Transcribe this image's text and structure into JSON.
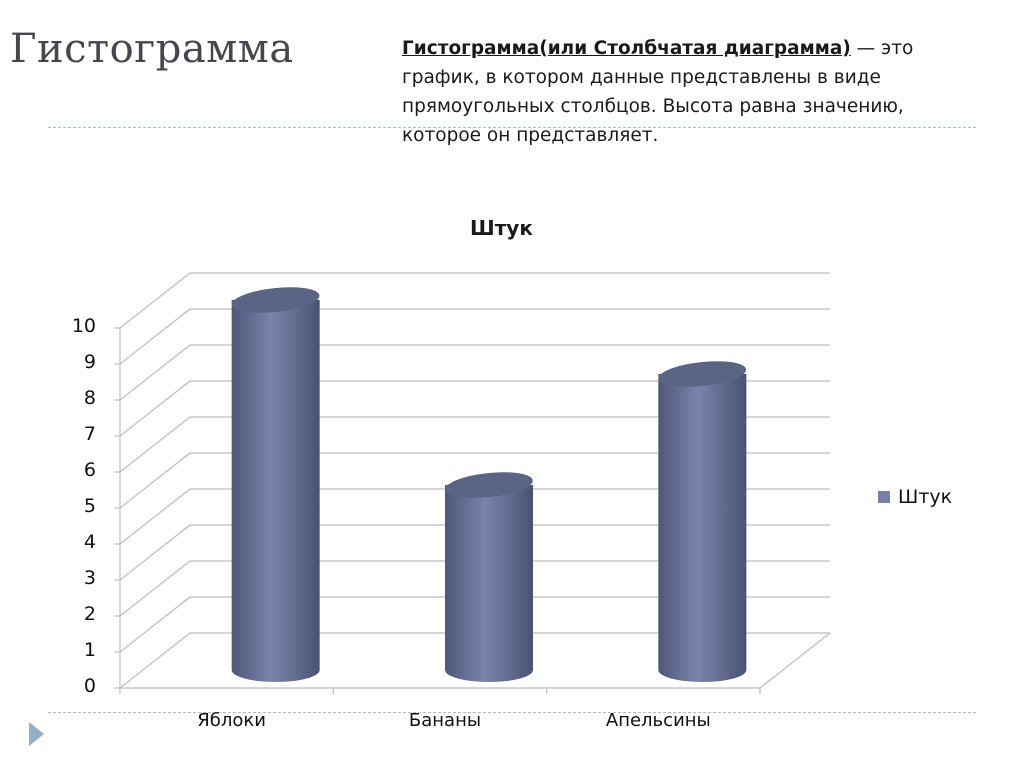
{
  "slide": {
    "title": "Гистограмма",
    "description": {
      "term": "Гистограмма(или Столбчатая диаграмма)",
      "text": " — это график, в котором данные представлены в виде прямоугольных столбцов. Высота равна значению, которое он представляет."
    }
  },
  "legend": {
    "label": "Штук",
    "color": "#7680a8"
  },
  "chart_data": {
    "type": "bar",
    "style": "3d-cylinder",
    "title": "Штук",
    "categories": [
      "Яблоки",
      "Бананы",
      "Апельсины"
    ],
    "series": [
      {
        "name": "Штук",
        "values": [
          10,
          5,
          8
        ],
        "color": "#7680a8"
      }
    ],
    "xlabel": "",
    "ylabel": "",
    "ylim": [
      0,
      10
    ],
    "yticks": [
      "0",
      "1",
      "2",
      "3",
      "4",
      "5",
      "6",
      "7",
      "8",
      "9",
      "10"
    ],
    "grid": true,
    "legend_position": "right"
  }
}
